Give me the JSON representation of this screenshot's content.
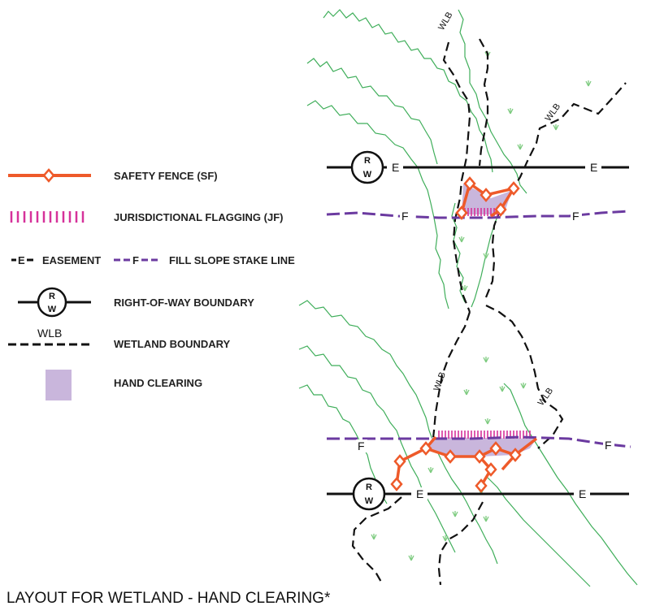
{
  "legend": {
    "safety_fence": "SAFETY FENCE (SF)",
    "jurisdictional_flagging": "JURISDICTIONAL FLAGGING (JF)",
    "easement_symbol": "E",
    "easement": "EASEMENT",
    "fill_slope_symbol": "F",
    "fill_slope": "FILL SLOPE STAKE LINE",
    "rw_top": "R",
    "rw_bottom": "W",
    "right_of_way": "RIGHT-OF-WAY BOUNDARY",
    "wlb_symbol": "WLB",
    "wetland_boundary": "WETLAND BOUNDARY",
    "hand_clearing": "HAND CLEARING"
  },
  "diagram": {
    "easement_tag": "E",
    "fill_tag": "F",
    "rw_top": "R",
    "rw_bottom": "W",
    "wlb_tag": "WLB"
  },
  "title": "LAYOUT FOR WETLAND - HAND CLEARING*",
  "colors": {
    "safety_fence": "#ee5a2a",
    "flagging": "#d6329a",
    "fill_slope": "#6b3aa0",
    "hand_clearing": "#c9b6dc",
    "wetland_green": "#3fae5a",
    "grass": "#7ecb80"
  }
}
